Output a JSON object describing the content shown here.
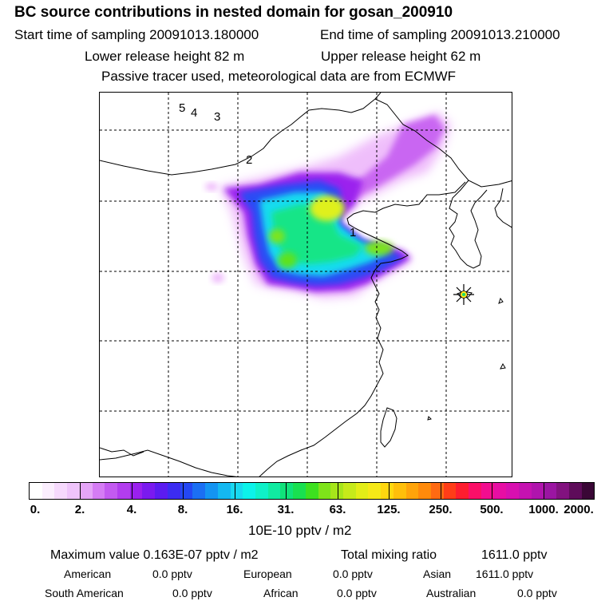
{
  "header": {
    "title": "BC  source contributions in nested domain for gosan_200910",
    "start_label": "Start time of sampling 20091013.180000",
    "end_label": "End time of sampling 20091013.210000",
    "lower_label": "Lower release height   82 m",
    "upper_label": "Upper release height   62 m",
    "note": "Passive tracer used, meteorological data are from ECMWF"
  },
  "map": {
    "markers": [
      "5",
      "4",
      "3",
      "2",
      "1"
    ],
    "receptor_icon": "star-marker-icon"
  },
  "colorbar": {
    "labels": [
      "0.",
      "2.",
      "4.",
      "8.",
      "16.",
      "31.",
      "63.",
      "125.",
      "250.",
      "500.",
      "1000.",
      "2000."
    ],
    "colors": [
      "#ffffff",
      "#fbeefe",
      "#f6d9fd",
      "#efc4fb",
      "#e5a5f8",
      "#d57cf4",
      "#c35af0",
      "#b23dee",
      "#9a20ee",
      "#7a1aef",
      "#5b1cf0",
      "#3c2cf2",
      "#2447f4",
      "#1b6ff3",
      "#1494f2",
      "#14b8f1",
      "#18d9f0",
      "#0cf3ea",
      "#0ff1c8",
      "#10eba1",
      "#10e27a",
      "#19e050",
      "#3de01f",
      "#7ee31a",
      "#a6e61a",
      "#c6ea1a",
      "#e3ed17",
      "#f6e917",
      "#ffd70f",
      "#ffbf0a",
      "#ffa40a",
      "#ff8a0b",
      "#ff6a12",
      "#ff3d18",
      "#fe1d2f",
      "#fb0f68",
      "#f20d8f",
      "#e70ea4",
      "#d80fb0",
      "#c512b1",
      "#b014ad",
      "#9b15a2",
      "#82127f",
      "#5e0c5a",
      "#3a0736"
    ],
    "units": "10E-10 pptv / m2"
  },
  "stats": {
    "max_label": "Maximum value  0.163E-07 pptv / m2",
    "total_label": "Total mixing ratio",
    "total_value": "1611.0 pptv",
    "sources": [
      {
        "name": "American",
        "value": "0.0 pptv"
      },
      {
        "name": "European",
        "value": "0.0 pptv"
      },
      {
        "name": "Asian",
        "value": "1611.0 pptv"
      },
      {
        "name": "South American",
        "value": "0.0 pptv"
      },
      {
        "name": "African",
        "value": "0.0 pptv"
      },
      {
        "name": "Australian",
        "value": "0.0 pptv"
      }
    ]
  }
}
